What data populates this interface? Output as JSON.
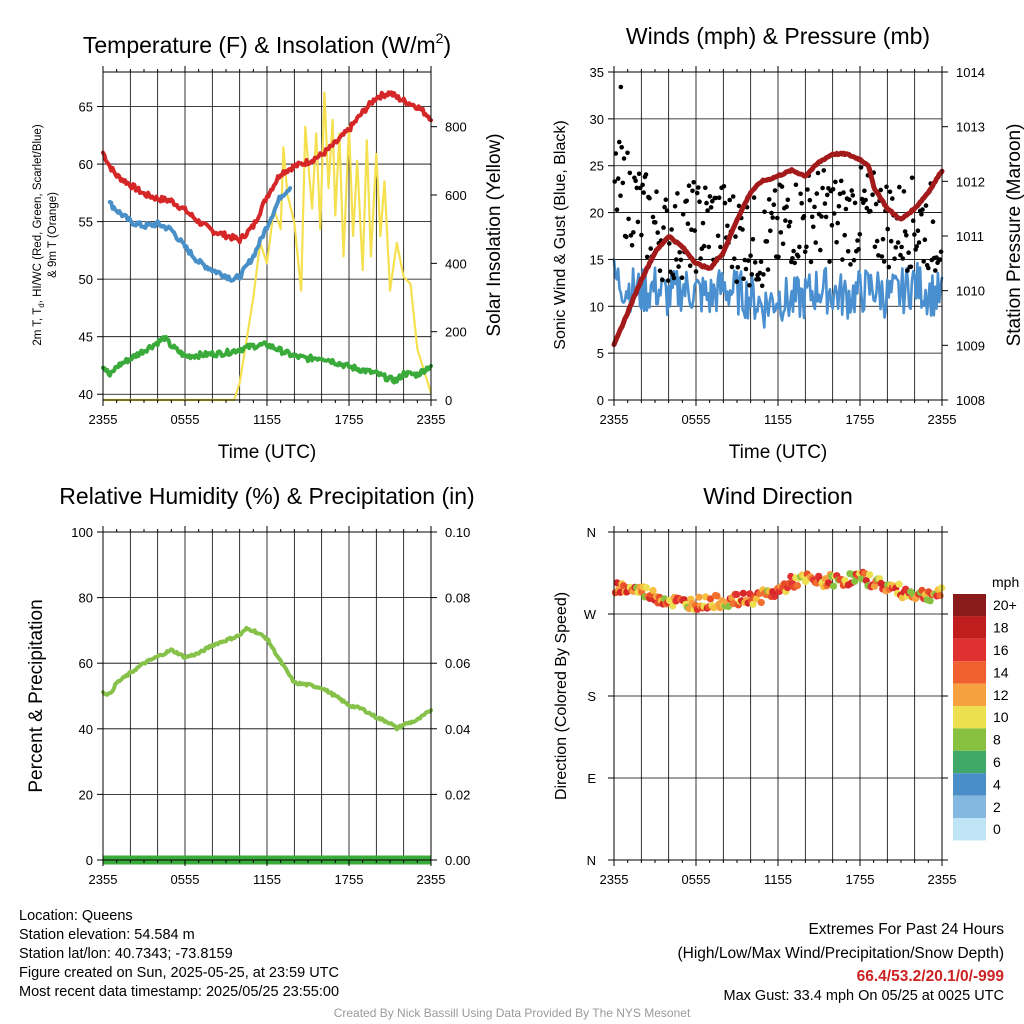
{
  "chart_data": [
    {
      "id": "temp",
      "type": "line",
      "title": "Temperature (F) & Insolation (W/m",
      "title_superscript": "2",
      "title_suffix": ")",
      "xlabel": "Time (UTC)",
      "ylabel_lines": [
        "2m T, T",
        "d",
        ", HI/WC (Red, Green, Scarlet/Blue)",
        "& 9m T (Orange)"
      ],
      "y2label": "Solar Insolation (Yellow)",
      "x_ticks": [
        "2355",
        "0555",
        "1155",
        "1755",
        "2355"
      ],
      "xlim_hours": [
        0,
        24
      ],
      "ylim": [
        39.5,
        68
      ],
      "y_ticks": [
        40,
        45,
        50,
        55,
        60,
        65
      ],
      "y2lim": [
        0,
        960
      ],
      "y2_ticks": [
        0,
        200,
        400,
        600,
        800
      ],
      "grid": true,
      "series": [
        {
          "color": "#d62728",
          "x": [
            0,
            0.5,
            1,
            2,
            3,
            4,
            5,
            6,
            7,
            8,
            9,
            10,
            11,
            12,
            13,
            14,
            15,
            16,
            17,
            18,
            19,
            20,
            21,
            21.5,
            22,
            23,
            24
          ],
          "y": [
            61,
            59.8,
            59,
            58.2,
            57.4,
            57,
            56.8,
            56,
            55,
            54.2,
            53.8,
            53.4,
            54.6,
            57.2,
            59.2,
            59.8,
            60.2,
            60.8,
            61.8,
            63,
            64.5,
            65.8,
            66.2,
            65.8,
            65.5,
            65,
            64
          ]
        },
        {
          "color": "#4a90c8",
          "x": [
            0.5,
            1,
            2,
            3,
            4,
            5,
            6,
            7,
            8,
            9,
            9.5,
            10,
            11,
            12,
            13,
            13.7
          ],
          "y": [
            56.6,
            56,
            55,
            54.6,
            54.8,
            54.3,
            52.8,
            51.5,
            50.8,
            50.3,
            50,
            50.2,
            52,
            54.6,
            57.2,
            58
          ]
        },
        {
          "color": "#3aaa3a",
          "x": [
            0,
            0.5,
            1,
            2,
            3,
            4,
            4.5,
            5,
            6,
            7,
            8,
            9,
            10,
            11,
            12,
            13,
            14,
            15,
            16,
            17,
            18,
            19,
            20,
            21,
            21.5,
            22,
            23,
            24
          ],
          "y": [
            42.5,
            41.6,
            42.4,
            43.1,
            43.8,
            44.5,
            44.9,
            44.2,
            43.3,
            43.4,
            43.5,
            43.6,
            43.9,
            44.2,
            44.3,
            43.8,
            43.3,
            43.1,
            43.2,
            42.8,
            42.4,
            42.1,
            41.8,
            41.3,
            41.2,
            41.8,
            41.7,
            42.5
          ]
        }
      ],
      "insolation": {
        "color": "#f5e050",
        "x": [
          0,
          9.6,
          10,
          11,
          11.5,
          12,
          12.5,
          13,
          13.2,
          13.5,
          14,
          14.5,
          14.8,
          15,
          15.3,
          15.6,
          15.9,
          16.2,
          16.5,
          16.8,
          17,
          17.3,
          17.6,
          18,
          18.3,
          18.6,
          19,
          19.3,
          19.6,
          20,
          20.3,
          20.6,
          21,
          21.5,
          22,
          22.5,
          23,
          24
        ],
        "y": [
          0,
          0,
          50,
          300,
          460,
          400,
          560,
          500,
          740,
          600,
          520,
          320,
          800,
          700,
          560,
          780,
          500,
          900,
          620,
          820,
          540,
          780,
          420,
          800,
          480,
          700,
          380,
          760,
          420,
          720,
          480,
          640,
          320,
          460,
          360,
          340,
          150,
          20
        ]
      }
    },
    {
      "id": "winds",
      "type": "scatter",
      "title": "Winds (mph) & Pressure (mb)",
      "xlabel": "Time (UTC)",
      "ylabel": "Sonic Wind & Gust (Blue, Black)",
      "y2label": "Station Pressure (Maroon)",
      "x_ticks": [
        "2355",
        "0555",
        "1155",
        "1755",
        "2355"
      ],
      "xlim_hours": [
        0,
        24
      ],
      "ylim": [
        0,
        35
      ],
      "y_ticks": [
        0,
        5,
        10,
        15,
        20,
        25,
        30,
        35
      ],
      "y2lim": [
        1008,
        1014
      ],
      "y2_ticks": [
        1008,
        1009,
        1010,
        1011,
        1012,
        1013,
        1014
      ],
      "grid": true,
      "wind": {
        "color": "#4a90d0",
        "x": [
          0,
          1,
          2,
          3,
          4,
          5,
          6,
          7,
          8,
          9,
          10,
          11,
          12,
          13,
          14,
          15,
          16,
          17,
          18,
          19,
          20,
          21,
          22,
          23,
          24
        ],
        "y": [
          13,
          12,
          11.5,
          12,
          11,
          12,
          11.5,
          11,
          12,
          11.5,
          11,
          10,
          11,
          10.5,
          11,
          12,
          11.5,
          11,
          11.5,
          12,
          11,
          11.5,
          12.5,
          11.5,
          11
        ]
      },
      "gust_mean": {
        "x": [
          0,
          1,
          2,
          3,
          4,
          5,
          6,
          7,
          8,
          9,
          10,
          11,
          12,
          13,
          14,
          15,
          16,
          17,
          18,
          19,
          20,
          21,
          22,
          23,
          24
        ],
        "y": [
          23,
          22,
          20,
          18.5,
          17,
          18,
          18.5,
          19,
          18.5,
          17.5,
          17,
          16.5,
          18,
          19,
          19.5,
          20,
          19.5,
          19,
          20,
          19.5,
          19,
          18.5,
          19,
          18.5,
          18
        ]
      },
      "gust_max": {
        "value": 33.4,
        "x": 0.5
      },
      "pressure": {
        "color": "#a31a1a",
        "x": [
          0,
          1,
          2,
          3,
          4,
          5,
          6,
          7,
          8,
          9,
          10,
          10.8,
          11.5,
          12,
          13,
          14,
          15,
          16,
          17,
          18,
          18.6,
          19,
          20,
          21,
          22,
          23,
          24
        ],
        "y": [
          1009,
          1009.6,
          1010.2,
          1010.7,
          1011,
          1010.8,
          1010.5,
          1010.4,
          1010.7,
          1011.3,
          1011.8,
          1012,
          1012.05,
          1012.1,
          1012.2,
          1012.1,
          1012.35,
          1012.5,
          1012.5,
          1012.4,
          1012.3,
          1011.9,
          1011.5,
          1011.3,
          1011.5,
          1011.8,
          1012.2
        ]
      }
    },
    {
      "id": "rh",
      "type": "line",
      "title": "Relative Humidity (%) & Precipitation (in)",
      "ylabel": "Percent & Precipitation",
      "x_ticks": [
        "2355",
        "0555",
        "1155",
        "1755",
        "2355"
      ],
      "xlim_hours": [
        0,
        24
      ],
      "ylim": [
        0,
        100
      ],
      "y_ticks": [
        0,
        20,
        40,
        60,
        80,
        100
      ],
      "y2lim": [
        0,
        0.1
      ],
      "y2_ticks": [
        "0.00",
        "0.02",
        "0.04",
        "0.06",
        "0.08",
        "0.10"
      ],
      "grid": true,
      "series": [
        {
          "color": "#86c24a",
          "x": [
            0,
            0.5,
            1,
            2,
            3,
            4,
            5,
            5.5,
            6,
            7,
            8,
            9,
            10,
            10.5,
            11,
            12,
            13,
            14,
            15,
            16,
            17,
            18,
            19,
            20,
            21,
            21.5,
            22,
            23,
            24
          ],
          "y": [
            51,
            50.5,
            54,
            57,
            60,
            62,
            64,
            63,
            61.8,
            63,
            65.5,
            67,
            68.5,
            70.5,
            70,
            67.5,
            60.5,
            54,
            53.4,
            52.5,
            50,
            47.2,
            46,
            43.5,
            41.8,
            40.1,
            41.3,
            42.6,
            45.7
          ]
        },
        {
          "color": "#3aaa3a",
          "x": [
            0,
            24
          ],
          "y": [
            0,
            0
          ]
        }
      ]
    },
    {
      "id": "wdir",
      "type": "scatter",
      "title": "Wind Direction",
      "ylabel": "Direction (Colored By Speed)",
      "x_ticks": [
        "2355",
        "0555",
        "1155",
        "1755",
        "2355"
      ],
      "xlim_hours": [
        0,
        24
      ],
      "ylim": [
        0,
        360
      ],
      "y_tick_labels": [
        "N",
        "E",
        "S",
        "W",
        "N"
      ],
      "grid": true,
      "direction": {
        "x": [
          0,
          1,
          2,
          3,
          4,
          5,
          6,
          7,
          8,
          9,
          10,
          11,
          12,
          13,
          14,
          15,
          16,
          17,
          18,
          19,
          20,
          21,
          22,
          23,
          24
        ],
        "y": [
          300,
          298,
          296,
          290,
          285,
          282,
          282,
          283,
          284,
          285,
          287,
          290,
          295,
          305,
          308,
          305,
          307,
          308,
          310,
          306,
          300,
          295,
          292,
          291,
          293
        ]
      },
      "colorbar": {
        "title": "mph",
        "labels": [
          "20+",
          "18",
          "16",
          "14",
          "12",
          "10",
          "8",
          "6",
          "4",
          "2",
          "0"
        ],
        "colors": [
          "#8b1a1a",
          "#c01e1e",
          "#e03030",
          "#f06030",
          "#f7a040",
          "#ece050",
          "#88c040",
          "#40a868",
          "#4a8ec8",
          "#84b8e0",
          "#bfe4f6"
        ]
      }
    }
  ],
  "station": {
    "location": "Location: Queens",
    "elevation": "Station elevation: 54.584 m",
    "latlon": "Station lat/lon: 40.7343; -73.8159",
    "created": "Figure created on Sun, 2025-05-25, at 23:59 UTC",
    "recent": "Most recent data timestamp: 2025/05/25 23:55:00"
  },
  "extremes": {
    "title": "Extremes For Past 24 Hours",
    "subtitle": "(High/Low/Max Wind/Precipitation/Snow Depth)",
    "values": "66.4/53.2/20.1/0/-999",
    "values_color": "#cc2222",
    "max_gust": "Max Gust: 33.4 mph On 05/25 at 0025 UTC"
  },
  "footer": "Created By Nick Bassill Using Data Provided By The NYS Mesonet"
}
